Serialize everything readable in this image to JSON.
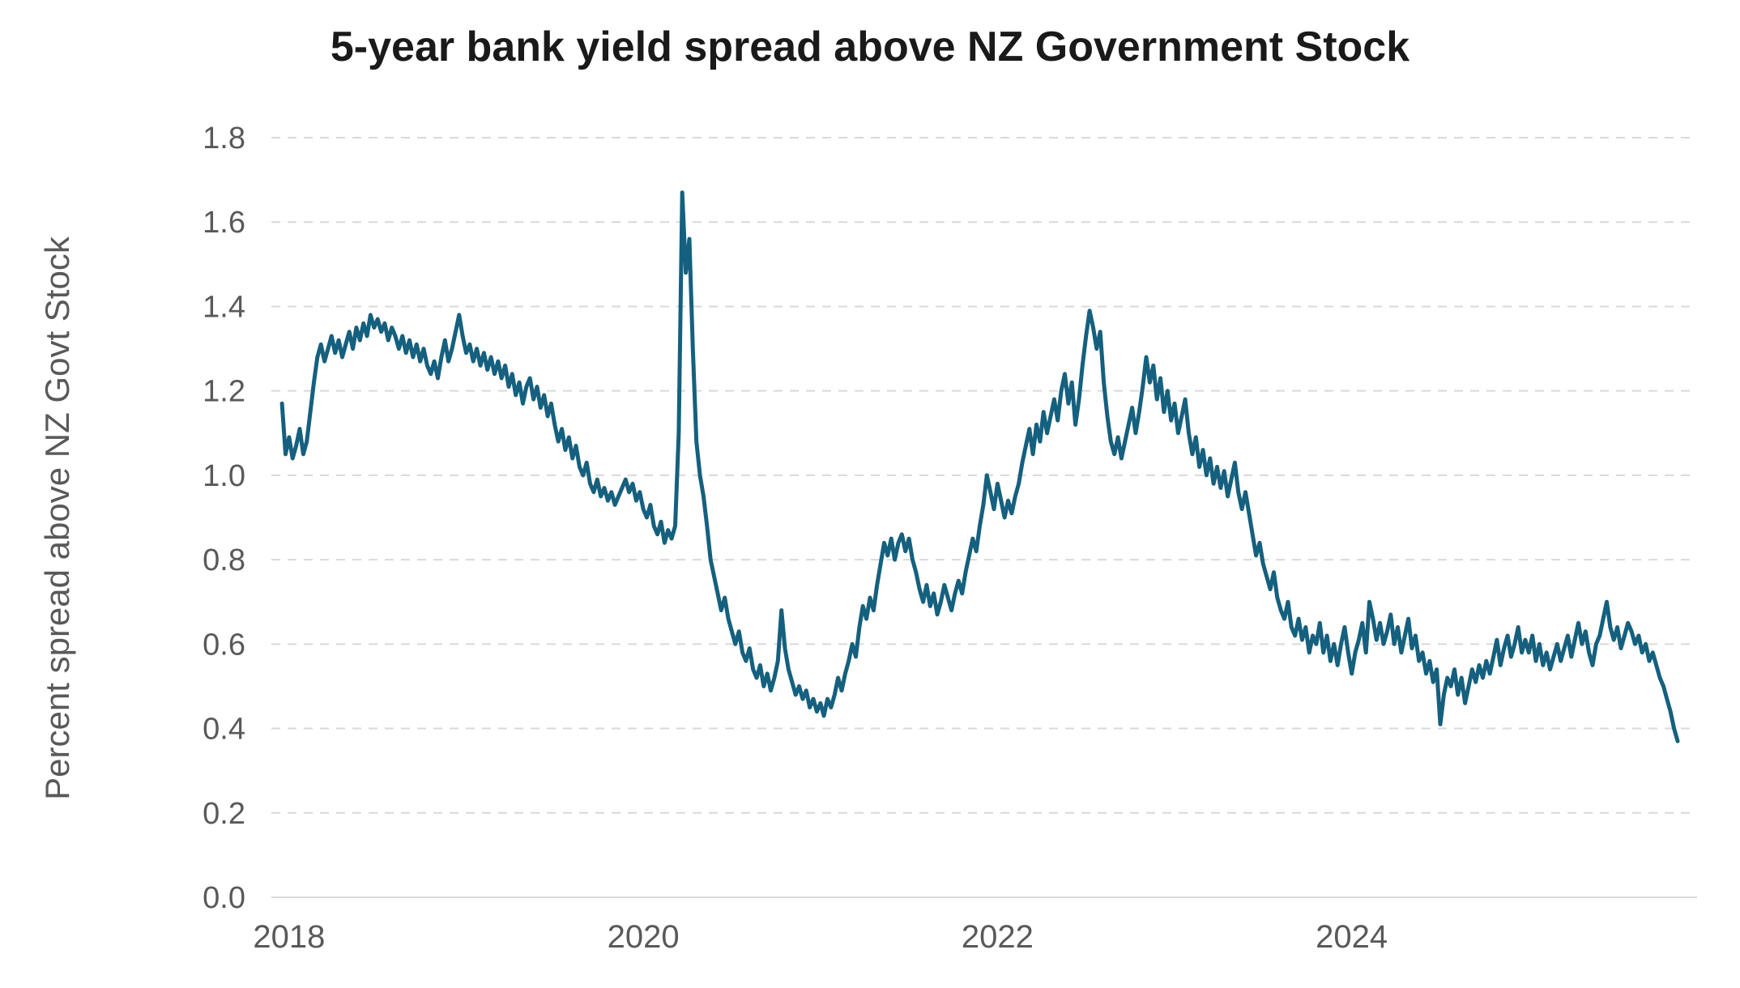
{
  "chart_data": {
    "type": "line",
    "title": "5-year bank yield spread above NZ Government Stock",
    "xlabel": "",
    "ylabel": "Percent spread above NZ Govt Stock",
    "ylim": [
      0.0,
      1.8
    ],
    "xlim": [
      2017.9,
      2025.95
    ],
    "yticks": [
      0.0,
      0.2,
      0.4,
      0.6,
      0.8,
      1.0,
      1.2,
      1.4,
      1.6,
      1.8
    ],
    "ytick_labels": [
      "0.0",
      "0.2",
      "0.4",
      "0.6",
      "0.8",
      "1.0",
      "1.2",
      "1.4",
      "1.6",
      "1.8"
    ],
    "xticks": [
      2018,
      2020,
      2022,
      2024
    ],
    "xtick_labels": [
      "2018",
      "2020",
      "2022",
      "2024"
    ],
    "grid": "horizontal-dashed",
    "legend": "none",
    "line_color": "#15607E",
    "gridline_color": "#d9d9d9",
    "tick_label_color": "#595959",
    "series": [
      {
        "name": "5-year bank yield spread above NZ Government Stock",
        "x_start": 2017.96,
        "x_step": 0.02,
        "values": [
          1.17,
          1.05,
          1.09,
          1.04,
          1.07,
          1.11,
          1.05,
          1.08,
          1.15,
          1.22,
          1.28,
          1.31,
          1.27,
          1.3,
          1.33,
          1.29,
          1.32,
          1.28,
          1.31,
          1.34,
          1.3,
          1.35,
          1.32,
          1.36,
          1.33,
          1.38,
          1.35,
          1.37,
          1.34,
          1.36,
          1.32,
          1.35,
          1.33,
          1.3,
          1.33,
          1.29,
          1.32,
          1.28,
          1.31,
          1.27,
          1.3,
          1.26,
          1.24,
          1.27,
          1.23,
          1.28,
          1.32,
          1.27,
          1.3,
          1.34,
          1.38,
          1.33,
          1.29,
          1.31,
          1.27,
          1.3,
          1.26,
          1.29,
          1.25,
          1.28,
          1.24,
          1.27,
          1.23,
          1.26,
          1.21,
          1.24,
          1.19,
          1.22,
          1.17,
          1.21,
          1.23,
          1.18,
          1.21,
          1.16,
          1.19,
          1.14,
          1.17,
          1.12,
          1.08,
          1.11,
          1.06,
          1.09,
          1.04,
          1.07,
          1.02,
          1.0,
          1.03,
          0.98,
          0.96,
          0.99,
          0.95,
          0.97,
          0.94,
          0.96,
          0.93,
          0.95,
          0.97,
          0.99,
          0.96,
          0.98,
          0.94,
          0.96,
          0.92,
          0.9,
          0.93,
          0.88,
          0.86,
          0.89,
          0.84,
          0.87,
          0.85,
          0.88,
          1.1,
          1.67,
          1.48,
          1.56,
          1.3,
          1.08,
          1.0,
          0.95,
          0.88,
          0.8,
          0.76,
          0.72,
          0.68,
          0.71,
          0.66,
          0.63,
          0.6,
          0.63,
          0.58,
          0.56,
          0.59,
          0.54,
          0.52,
          0.55,
          0.5,
          0.53,
          0.49,
          0.52,
          0.56,
          0.68,
          0.59,
          0.54,
          0.51,
          0.48,
          0.5,
          0.47,
          0.49,
          0.45,
          0.47,
          0.44,
          0.46,
          0.43,
          0.47,
          0.45,
          0.48,
          0.52,
          0.49,
          0.53,
          0.56,
          0.6,
          0.57,
          0.64,
          0.69,
          0.66,
          0.71,
          0.68,
          0.74,
          0.79,
          0.84,
          0.81,
          0.85,
          0.8,
          0.84,
          0.86,
          0.82,
          0.85,
          0.8,
          0.77,
          0.73,
          0.7,
          0.74,
          0.69,
          0.72,
          0.67,
          0.7,
          0.74,
          0.71,
          0.68,
          0.72,
          0.75,
          0.72,
          0.77,
          0.81,
          0.85,
          0.82,
          0.88,
          0.93,
          1.0,
          0.96,
          0.92,
          0.98,
          0.94,
          0.9,
          0.94,
          0.91,
          0.95,
          0.98,
          1.03,
          1.07,
          1.11,
          1.05,
          1.12,
          1.08,
          1.15,
          1.1,
          1.14,
          1.18,
          1.13,
          1.2,
          1.24,
          1.17,
          1.22,
          1.12,
          1.18,
          1.26,
          1.33,
          1.39,
          1.35,
          1.3,
          1.34,
          1.22,
          1.14,
          1.08,
          1.05,
          1.09,
          1.04,
          1.08,
          1.12,
          1.16,
          1.1,
          1.15,
          1.21,
          1.28,
          1.22,
          1.26,
          1.18,
          1.23,
          1.15,
          1.2,
          1.13,
          1.17,
          1.1,
          1.14,
          1.18,
          1.1,
          1.05,
          1.09,
          1.02,
          1.06,
          1.0,
          1.04,
          0.98,
          1.02,
          0.97,
          1.01,
          0.95,
          0.99,
          1.03,
          0.96,
          0.92,
          0.96,
          0.91,
          0.86,
          0.81,
          0.84,
          0.79,
          0.76,
          0.73,
          0.77,
          0.71,
          0.68,
          0.66,
          0.7,
          0.64,
          0.62,
          0.66,
          0.61,
          0.64,
          0.58,
          0.62,
          0.6,
          0.65,
          0.58,
          0.62,
          0.56,
          0.6,
          0.55,
          0.6,
          0.64,
          0.58,
          0.53,
          0.58,
          0.61,
          0.65,
          0.58,
          0.7,
          0.66,
          0.61,
          0.65,
          0.6,
          0.63,
          0.67,
          0.6,
          0.64,
          0.58,
          0.62,
          0.66,
          0.59,
          0.62,
          0.56,
          0.58,
          0.53,
          0.56,
          0.51,
          0.54,
          0.41,
          0.48,
          0.52,
          0.5,
          0.54,
          0.48,
          0.52,
          0.46,
          0.5,
          0.54,
          0.51,
          0.55,
          0.52,
          0.56,
          0.53,
          0.57,
          0.61,
          0.55,
          0.59,
          0.62,
          0.57,
          0.6,
          0.64,
          0.58,
          0.61,
          0.58,
          0.62,
          0.56,
          0.6,
          0.55,
          0.58,
          0.54,
          0.57,
          0.6,
          0.56,
          0.59,
          0.62,
          0.57,
          0.61,
          0.65,
          0.6,
          0.63,
          0.58,
          0.55,
          0.6,
          0.62,
          0.66,
          0.7,
          0.64,
          0.61,
          0.64,
          0.59,
          0.62,
          0.65,
          0.63,
          0.6,
          0.62,
          0.58,
          0.6,
          0.56,
          0.58,
          0.55,
          0.52,
          0.5,
          0.47,
          0.44,
          0.4,
          0.37
        ]
      }
    ]
  }
}
